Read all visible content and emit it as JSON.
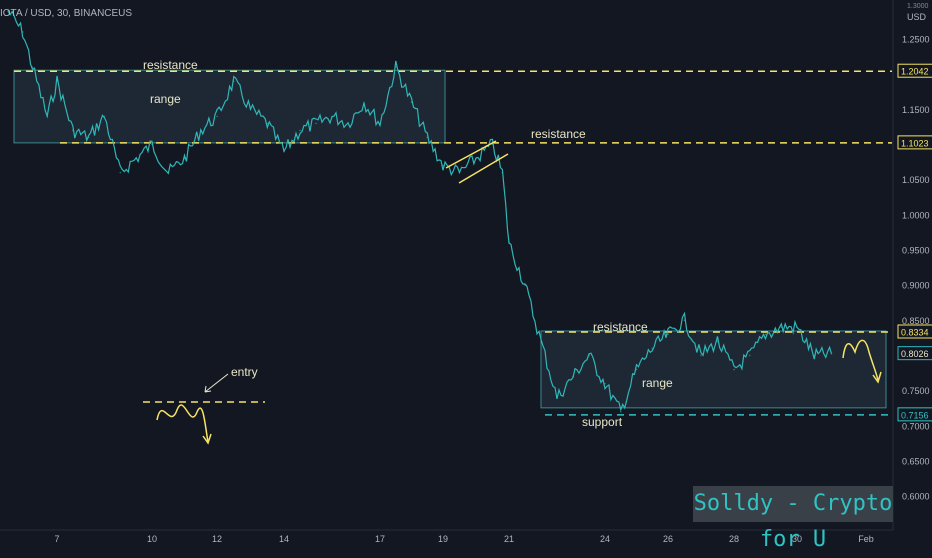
{
  "symbol": "IOTA / USD, 30, BINANCEUS",
  "currency": "USD",
  "axis_top_partial": "1.3000",
  "watermark": "Solldy - Crypto for U",
  "colors": {
    "background": "#131722",
    "price_line": "#2fb7b7",
    "resistance": "#f7e463",
    "support": "#2fc3c4",
    "range_box": "#2a3a44",
    "axis_text": "#b2b5be",
    "arrow": "#f7e463"
  },
  "chart_data": {
    "type": "line",
    "title": "IOTA / USD, 30, BINANCEUS",
    "xlabel": "",
    "ylabel": "",
    "x_ticks": [
      "7",
      "10",
      "12",
      "14",
      "17",
      "19",
      "21",
      "24",
      "26",
      "28",
      "30",
      "Feb"
    ],
    "y_ticks": [
      1.25,
      1.2,
      1.15,
      1.1,
      1.05,
      1.0,
      0.95,
      0.9,
      0.85,
      0.8,
      0.75,
      0.7,
      0.65,
      0.6
    ],
    "ylim": [
      0.585,
      1.29
    ],
    "grid": false,
    "series": [
      {
        "values": [
          {
            "x": "6",
            "y": 1.29
          },
          {
            "x": "6.3",
            "y": 1.26
          },
          {
            "x": "6.5",
            "y": 1.21
          },
          {
            "x": "6.8",
            "y": 1.14
          },
          {
            "x": "7",
            "y": 1.19
          },
          {
            "x": "7.5",
            "y": 1.12
          },
          {
            "x": "8",
            "y": 1.11
          },
          {
            "x": "8.5",
            "y": 1.14
          },
          {
            "x": "9",
            "y": 1.06
          },
          {
            "x": "9.5",
            "y": 1.08
          },
          {
            "x": "10",
            "y": 1.1
          },
          {
            "x": "10.5",
            "y": 1.06
          },
          {
            "x": "11",
            "y": 1.08
          },
          {
            "x": "11.5",
            "y": 1.12
          },
          {
            "x": "12",
            "y": 1.14
          },
          {
            "x": "12.5",
            "y": 1.19
          },
          {
            "x": "13",
            "y": 1.15
          },
          {
            "x": "13.5",
            "y": 1.13
          },
          {
            "x": "14",
            "y": 1.09
          },
          {
            "x": "14.5",
            "y": 1.12
          },
          {
            "x": "15",
            "y": 1.13
          },
          {
            "x": "15.5",
            "y": 1.14
          },
          {
            "x": "16",
            "y": 1.13
          },
          {
            "x": "16.5",
            "y": 1.16
          },
          {
            "x": "17",
            "y": 1.13
          },
          {
            "x": "17.5",
            "y": 1.21
          },
          {
            "x": "18",
            "y": 1.16
          },
          {
            "x": "18.5",
            "y": 1.11
          },
          {
            "x": "19",
            "y": 1.07
          },
          {
            "x": "19.5",
            "y": 1.06
          },
          {
            "x": "20",
            "y": 1.08
          },
          {
            "x": "20.5",
            "y": 1.1
          },
          {
            "x": "20.8",
            "y": 1.06
          },
          {
            "x": "21",
            "y": 0.96
          },
          {
            "x": "21.5",
            "y": 0.9
          },
          {
            "x": "22",
            "y": 0.82
          },
          {
            "x": "22.5",
            "y": 0.74
          },
          {
            "x": "23",
            "y": 0.77
          },
          {
            "x": "23.5",
            "y": 0.8
          },
          {
            "x": "24",
            "y": 0.76
          },
          {
            "x": "24.5",
            "y": 0.72
          },
          {
            "x": "25",
            "y": 0.78
          },
          {
            "x": "25.5",
            "y": 0.81
          },
          {
            "x": "26",
            "y": 0.83
          },
          {
            "x": "26.5",
            "y": 0.85
          },
          {
            "x": "27",
            "y": 0.8
          },
          {
            "x": "27.5",
            "y": 0.82
          },
          {
            "x": "28",
            "y": 0.78
          },
          {
            "x": "28.5",
            "y": 0.8
          },
          {
            "x": "29",
            "y": 0.83
          },
          {
            "x": "29.5",
            "y": 0.84
          },
          {
            "x": "30",
            "y": 0.84
          },
          {
            "x": "30.5",
            "y": 0.8
          },
          {
            "x": "31",
            "y": 0.8026
          }
        ]
      }
    ],
    "price_labels": [
      "1.2042",
      "1.1023",
      "0.8334",
      "0.8026",
      "0.7156"
    ],
    "levels": [
      {
        "price": 1.2042,
        "label": "1.2042",
        "kind": "resistance"
      },
      {
        "price": 1.1023,
        "label": "1.1023",
        "kind": "resistance"
      },
      {
        "price": 0.8334,
        "label": "0.8334",
        "kind": "resistance"
      },
      {
        "price": 0.7156,
        "label": "0.7156",
        "kind": "support"
      }
    ],
    "current_price": {
      "price": 0.8026,
      "label": "0.8026"
    },
    "annotations": [
      {
        "text": "resistance",
        "near": "top-left range upper line"
      },
      {
        "text": "range",
        "near": "top-left range box"
      },
      {
        "text": "resistance",
        "near": "middle upper line"
      },
      {
        "text": "resistance",
        "near": "bottom-right range upper line"
      },
      {
        "text": "range",
        "near": "bottom-right range box"
      },
      {
        "text": "support",
        "near": "bottom-right range lower line"
      },
      {
        "text": "entry",
        "near": "bottom-left sketch"
      }
    ]
  }
}
